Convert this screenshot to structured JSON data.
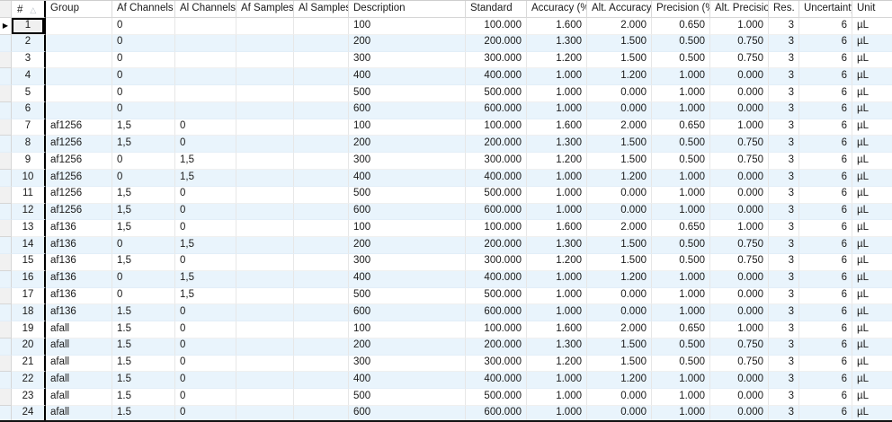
{
  "icons": {
    "current_row": "▶",
    "sort_ascending": "△"
  },
  "selection": {
    "focused_row": 1,
    "focused_column": "#"
  },
  "table": {
    "columns": {
      "num": "#",
      "group": "Group",
      "af_channels": "Af Channels",
      "al_channels": "Al Channels",
      "af_samples": "Af Samples",
      "al_samples": "Al Samples",
      "description": "Description",
      "standard": "Standard",
      "accuracy": "Accuracy (%)",
      "alt_accuracy": "Alt. Accuracy",
      "precision": "Precision (%)",
      "alt_precision": "Alt. Precision",
      "res": "Res.",
      "uncertainty": "Uncertainty",
      "unit": "Unit"
    },
    "rows": [
      {
        "num": "1",
        "group": "",
        "af_channels": "0",
        "al_channels": "",
        "af_samples": "",
        "al_samples": "",
        "description": "100",
        "standard": "100.000",
        "accuracy": "1.600",
        "alt_accuracy": "2.000",
        "precision": "0.650",
        "alt_precision": "1.000",
        "res": "3",
        "uncertainty": "6",
        "unit": "µL"
      },
      {
        "num": "2",
        "group": "",
        "af_channels": "0",
        "al_channels": "",
        "af_samples": "",
        "al_samples": "",
        "description": "200",
        "standard": "200.000",
        "accuracy": "1.300",
        "alt_accuracy": "1.500",
        "precision": "0.500",
        "alt_precision": "0.750",
        "res": "3",
        "uncertainty": "6",
        "unit": "µL"
      },
      {
        "num": "3",
        "group": "",
        "af_channels": "0",
        "al_channels": "",
        "af_samples": "",
        "al_samples": "",
        "description": "300",
        "standard": "300.000",
        "accuracy": "1.200",
        "alt_accuracy": "1.500",
        "precision": "0.500",
        "alt_precision": "0.750",
        "res": "3",
        "uncertainty": "6",
        "unit": "µL"
      },
      {
        "num": "4",
        "group": "",
        "af_channels": "0",
        "al_channels": "",
        "af_samples": "",
        "al_samples": "",
        "description": "400",
        "standard": "400.000",
        "accuracy": "1.000",
        "alt_accuracy": "1.200",
        "precision": "1.000",
        "alt_precision": "0.000",
        "res": "3",
        "uncertainty": "6",
        "unit": "µL"
      },
      {
        "num": "5",
        "group": "",
        "af_channels": "0",
        "al_channels": "",
        "af_samples": "",
        "al_samples": "",
        "description": "500",
        "standard": "500.000",
        "accuracy": "1.000",
        "alt_accuracy": "0.000",
        "precision": "1.000",
        "alt_precision": "0.000",
        "res": "3",
        "uncertainty": "6",
        "unit": "µL"
      },
      {
        "num": "6",
        "group": "",
        "af_channels": "0",
        "al_channels": "",
        "af_samples": "",
        "al_samples": "",
        "description": "600",
        "standard": "600.000",
        "accuracy": "1.000",
        "alt_accuracy": "0.000",
        "precision": "1.000",
        "alt_precision": "0.000",
        "res": "3",
        "uncertainty": "6",
        "unit": "µL"
      },
      {
        "num": "7",
        "group": "af1256",
        "af_channels": "1,5",
        "al_channels": "0",
        "af_samples": "",
        "al_samples": "",
        "description": "100",
        "standard": "100.000",
        "accuracy": "1.600",
        "alt_accuracy": "2.000",
        "precision": "0.650",
        "alt_precision": "1.000",
        "res": "3",
        "uncertainty": "6",
        "unit": "µL"
      },
      {
        "num": "8",
        "group": "af1256",
        "af_channels": "1,5",
        "al_channels": "0",
        "af_samples": "",
        "al_samples": "",
        "description": "200",
        "standard": "200.000",
        "accuracy": "1.300",
        "alt_accuracy": "1.500",
        "precision": "0.500",
        "alt_precision": "0.750",
        "res": "3",
        "uncertainty": "6",
        "unit": "µL"
      },
      {
        "num": "9",
        "group": "af1256",
        "af_channels": "0",
        "al_channels": "1,5",
        "af_samples": "",
        "al_samples": "",
        "description": "300",
        "standard": "300.000",
        "accuracy": "1.200",
        "alt_accuracy": "1.500",
        "precision": "0.500",
        "alt_precision": "0.750",
        "res": "3",
        "uncertainty": "6",
        "unit": "µL"
      },
      {
        "num": "10",
        "group": "af1256",
        "af_channels": "0",
        "al_channels": "1,5",
        "af_samples": "",
        "al_samples": "",
        "description": "400",
        "standard": "400.000",
        "accuracy": "1.000",
        "alt_accuracy": "1.200",
        "precision": "1.000",
        "alt_precision": "0.000",
        "res": "3",
        "uncertainty": "6",
        "unit": "µL"
      },
      {
        "num": "11",
        "group": "af1256",
        "af_channels": "1,5",
        "al_channels": "0",
        "af_samples": "",
        "al_samples": "",
        "description": "500",
        "standard": "500.000",
        "accuracy": "1.000",
        "alt_accuracy": "0.000",
        "precision": "1.000",
        "alt_precision": "0.000",
        "res": "3",
        "uncertainty": "6",
        "unit": "µL"
      },
      {
        "num": "12",
        "group": "af1256",
        "af_channels": "1,5",
        "al_channels": "0",
        "af_samples": "",
        "al_samples": "",
        "description": "600",
        "standard": "600.000",
        "accuracy": "1.000",
        "alt_accuracy": "0.000",
        "precision": "1.000",
        "alt_precision": "0.000",
        "res": "3",
        "uncertainty": "6",
        "unit": "µL"
      },
      {
        "num": "13",
        "group": "af136",
        "af_channels": "1,5",
        "al_channels": "0",
        "af_samples": "",
        "al_samples": "",
        "description": "100",
        "standard": "100.000",
        "accuracy": "1.600",
        "alt_accuracy": "2.000",
        "precision": "0.650",
        "alt_precision": "1.000",
        "res": "3",
        "uncertainty": "6",
        "unit": "µL"
      },
      {
        "num": "14",
        "group": "af136",
        "af_channels": "0",
        "al_channels": "1,5",
        "af_samples": "",
        "al_samples": "",
        "description": "200",
        "standard": "200.000",
        "accuracy": "1.300",
        "alt_accuracy": "1.500",
        "precision": "0.500",
        "alt_precision": "0.750",
        "res": "3",
        "uncertainty": "6",
        "unit": "µL"
      },
      {
        "num": "15",
        "group": "af136",
        "af_channels": "1,5",
        "al_channels": "0",
        "af_samples": "",
        "al_samples": "",
        "description": "300",
        "standard": "300.000",
        "accuracy": "1.200",
        "alt_accuracy": "1.500",
        "precision": "0.500",
        "alt_precision": "0.750",
        "res": "3",
        "uncertainty": "6",
        "unit": "µL"
      },
      {
        "num": "16",
        "group": "af136",
        "af_channels": "0",
        "al_channels": "1,5",
        "af_samples": "",
        "al_samples": "",
        "description": "400",
        "standard": "400.000",
        "accuracy": "1.000",
        "alt_accuracy": "1.200",
        "precision": "1.000",
        "alt_precision": "0.000",
        "res": "3",
        "uncertainty": "6",
        "unit": "µL"
      },
      {
        "num": "17",
        "group": "af136",
        "af_channels": "0",
        "al_channels": "1,5",
        "af_samples": "",
        "al_samples": "",
        "description": "500",
        "standard": "500.000",
        "accuracy": "1.000",
        "alt_accuracy": "0.000",
        "precision": "1.000",
        "alt_precision": "0.000",
        "res": "3",
        "uncertainty": "6",
        "unit": "µL"
      },
      {
        "num": "18",
        "group": "af136",
        "af_channels": "1.5",
        "al_channels": "0",
        "af_samples": "",
        "al_samples": "",
        "description": "600",
        "standard": "600.000",
        "accuracy": "1.000",
        "alt_accuracy": "0.000",
        "precision": "1.000",
        "alt_precision": "0.000",
        "res": "3",
        "uncertainty": "6",
        "unit": "µL"
      },
      {
        "num": "19",
        "group": "afall",
        "af_channels": "1.5",
        "al_channels": "0",
        "af_samples": "",
        "al_samples": "",
        "description": "100",
        "standard": "100.000",
        "accuracy": "1.600",
        "alt_accuracy": "2.000",
        "precision": "0.650",
        "alt_precision": "1.000",
        "res": "3",
        "uncertainty": "6",
        "unit": "µL"
      },
      {
        "num": "20",
        "group": "afall",
        "af_channels": "1.5",
        "al_channels": "0",
        "af_samples": "",
        "al_samples": "",
        "description": "200",
        "standard": "200.000",
        "accuracy": "1.300",
        "alt_accuracy": "1.500",
        "precision": "0.500",
        "alt_precision": "0.750",
        "res": "3",
        "uncertainty": "6",
        "unit": "µL"
      },
      {
        "num": "21",
        "group": "afall",
        "af_channels": "1.5",
        "al_channels": "0",
        "af_samples": "",
        "al_samples": "",
        "description": "300",
        "standard": "300.000",
        "accuracy": "1.200",
        "alt_accuracy": "1.500",
        "precision": "0.500",
        "alt_precision": "0.750",
        "res": "3",
        "uncertainty": "6",
        "unit": "µL"
      },
      {
        "num": "22",
        "group": "afall",
        "af_channels": "1.5",
        "al_channels": "0",
        "af_samples": "",
        "al_samples": "",
        "description": "400",
        "standard": "400.000",
        "accuracy": "1.000",
        "alt_accuracy": "1.200",
        "precision": "1.000",
        "alt_precision": "0.000",
        "res": "3",
        "uncertainty": "6",
        "unit": "µL"
      },
      {
        "num": "23",
        "group": "afall",
        "af_channels": "1.5",
        "al_channels": "0",
        "af_samples": "",
        "al_samples": "",
        "description": "500",
        "standard": "500.000",
        "accuracy": "1.000",
        "alt_accuracy": "0.000",
        "precision": "1.000",
        "alt_precision": "0.000",
        "res": "3",
        "uncertainty": "6",
        "unit": "µL"
      },
      {
        "num": "24",
        "group": "afall",
        "af_channels": "1.5",
        "al_channels": "0",
        "af_samples": "",
        "al_samples": "",
        "description": "600",
        "standard": "600.000",
        "accuracy": "1.000",
        "alt_accuracy": "0.000",
        "precision": "1.000",
        "alt_precision": "0.000",
        "res": "3",
        "uncertainty": "6",
        "unit": "µL"
      }
    ]
  }
}
